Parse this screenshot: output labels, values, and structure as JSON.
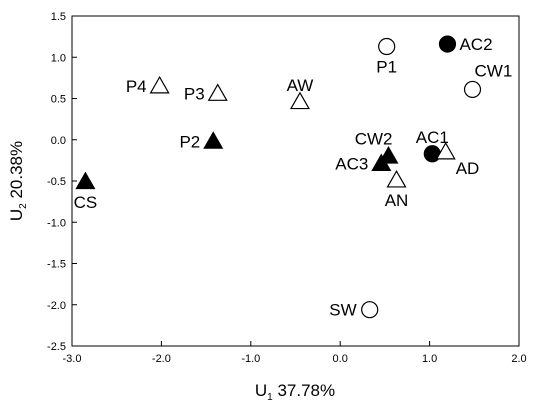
{
  "chart_data": {
    "type": "scatter",
    "title": "",
    "xlabel": {
      "main": "U",
      "sub": "1",
      "rest": " 37.78%"
    },
    "ylabel": {
      "main": "U",
      "sub": "2",
      "rest": " 20.38%"
    },
    "xlim": [
      -3.0,
      2.0
    ],
    "ylim": [
      -2.5,
      1.5
    ],
    "xticks": [
      -3.0,
      -2.0,
      -1.0,
      0.0,
      1.0,
      2.0
    ],
    "xtick_labels": [
      "-3.0",
      "-2.0",
      "-1.0",
      "0.0",
      "1.0",
      "2.0"
    ],
    "yticks": [
      1.5,
      1.0,
      0.5,
      0.0,
      -0.5,
      -1.0,
      -1.5,
      -2.0,
      -2.5
    ],
    "ytick_labels": [
      "1.5",
      "1.0",
      "0.5",
      "0.0",
      "-0.5",
      "-1.0",
      "-1.5",
      "-2.0",
      "-2.5"
    ],
    "grid": false,
    "points": [
      {
        "label": "CS",
        "x": -2.85,
        "y": -0.51,
        "marker": "triangle",
        "filled": true,
        "label_pos": "below"
      },
      {
        "label": "P4",
        "x": -2.02,
        "y": 0.65,
        "marker": "triangle",
        "filled": false,
        "label_pos": "left"
      },
      {
        "label": "P3",
        "x": -1.37,
        "y": 0.56,
        "marker": "triangle",
        "filled": false,
        "label_pos": "left"
      },
      {
        "label": "P2",
        "x": -1.42,
        "y": -0.02,
        "marker": "triangle",
        "filled": true,
        "label_pos": "left"
      },
      {
        "label": "AW",
        "x": -0.45,
        "y": 0.46,
        "marker": "triangle",
        "filled": false,
        "label_pos": "above"
      },
      {
        "label": "P1",
        "x": 0.52,
        "y": 1.13,
        "marker": "circle",
        "filled": false,
        "label_pos": "below"
      },
      {
        "label": "AC2",
        "x": 1.2,
        "y": 1.16,
        "marker": "circle",
        "filled": true,
        "label_pos": "right"
      },
      {
        "label": "CW1",
        "x": 1.48,
        "y": 0.61,
        "marker": "circle",
        "filled": false,
        "label_pos": "above-right"
      },
      {
        "label": "CW2",
        "x": 0.54,
        "y": -0.2,
        "marker": "triangle",
        "filled": true,
        "label_pos": "above-left"
      },
      {
        "label": "AC3",
        "x": 0.46,
        "y": -0.29,
        "marker": "triangle",
        "filled": true,
        "label_pos": "left"
      },
      {
        "label": "AN",
        "x": 0.63,
        "y": -0.49,
        "marker": "triangle",
        "filled": false,
        "label_pos": "below"
      },
      {
        "label": "AC1",
        "x": 1.03,
        "y": -0.17,
        "marker": "circle",
        "filled": true,
        "label_pos": "above"
      },
      {
        "label": "AD",
        "x": 1.18,
        "y": -0.15,
        "marker": "triangle",
        "filled": false,
        "label_pos": "below-right"
      },
      {
        "label": "SW",
        "x": 0.33,
        "y": -2.06,
        "marker": "circle",
        "filled": false,
        "label_pos": "left"
      }
    ]
  }
}
